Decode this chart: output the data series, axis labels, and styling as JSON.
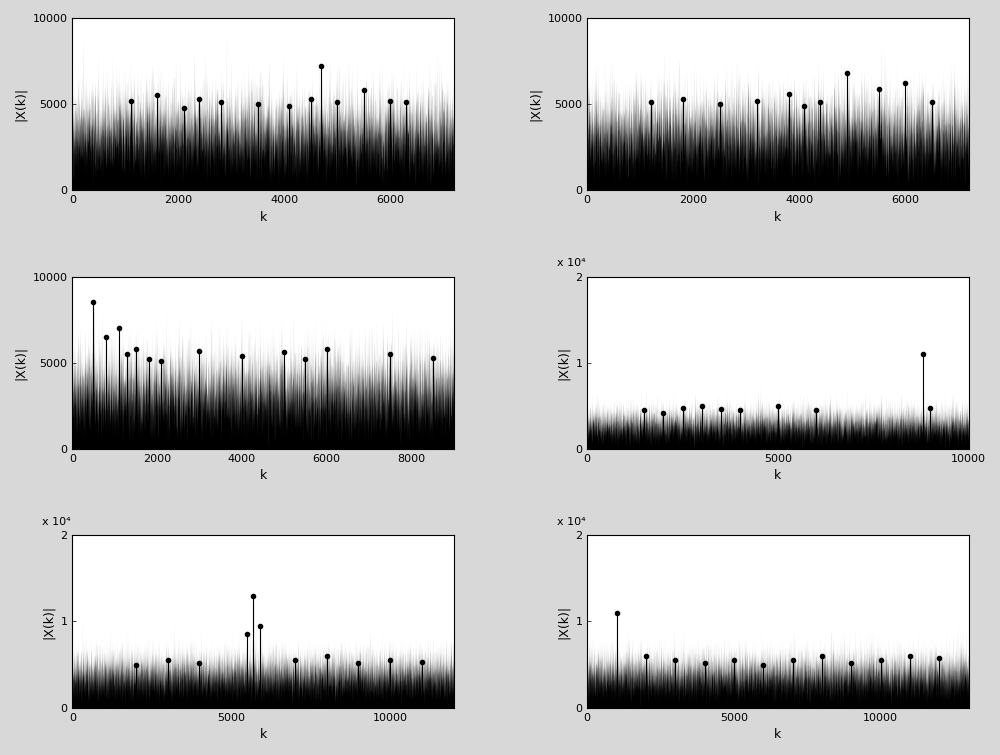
{
  "subplots": [
    {
      "row": 0,
      "col": 0,
      "n_points": 7200,
      "noise_level": 3500,
      "noise_base": 3500,
      "spike_positions": [
        1100,
        1600,
        2100,
        2400,
        2800,
        3500,
        4100,
        4500,
        4700,
        5000,
        5500,
        6000,
        6300
      ],
      "spike_heights": [
        5200,
        5500,
        4800,
        5300,
        5100,
        5000,
        4900,
        5300,
        7200,
        5100,
        5800,
        5200,
        5100
      ],
      "xlim": [
        0,
        7200
      ],
      "ylim": [
        0,
        10000
      ],
      "yticks": [
        0,
        5000,
        10000
      ],
      "xticks": [
        0,
        2000,
        4000,
        6000
      ],
      "ylabel": "|X(k)|",
      "xlabel": "k",
      "scale_label": null
    },
    {
      "row": 0,
      "col": 1,
      "n_points": 7200,
      "noise_level": 3500,
      "noise_base": 3500,
      "spike_positions": [
        1200,
        1800,
        2500,
        3200,
        3800,
        4100,
        4400,
        4900,
        5500,
        6000,
        6500
      ],
      "spike_heights": [
        5100,
        5300,
        5000,
        5200,
        5600,
        4900,
        5100,
        6800,
        5900,
        6200,
        5100
      ],
      "xlim": [
        0,
        7200
      ],
      "ylim": [
        0,
        10000
      ],
      "yticks": [
        0,
        5000,
        10000
      ],
      "xticks": [
        0,
        2000,
        4000,
        6000
      ],
      "ylabel": "|X(k)|",
      "xlabel": "k",
      "scale_label": null
    },
    {
      "row": 1,
      "col": 0,
      "n_points": 9000,
      "noise_level": 3500,
      "noise_base": 3500,
      "spike_positions": [
        500,
        800,
        1100,
        1300,
        1500,
        1800,
        2100,
        3000,
        4000,
        5000,
        5500,
        6000,
        7500,
        8500
      ],
      "spike_heights": [
        8500,
        6500,
        7000,
        5500,
        5800,
        5200,
        5100,
        5700,
        5400,
        5600,
        5200,
        5800,
        5500,
        5300
      ],
      "xlim": [
        0,
        9000
      ],
      "ylim": [
        0,
        10000
      ],
      "yticks": [
        0,
        5000,
        10000
      ],
      "xticks": [
        0,
        2000,
        4000,
        6000,
        8000
      ],
      "ylabel": "|X(k)|",
      "xlabel": "k",
      "scale_label": null
    },
    {
      "row": 1,
      "col": 1,
      "n_points": 10000,
      "noise_level": 3000,
      "noise_base": 3000,
      "spike_positions": [
        1500,
        2000,
        2500,
        3000,
        3500,
        4000,
        5000,
        6000,
        8800,
        9000
      ],
      "spike_heights": [
        4500,
        4200,
        4800,
        5000,
        4600,
        4500,
        5000,
        4500,
        11000,
        4800
      ],
      "xlim": [
        0,
        10000
      ],
      "ylim": [
        0,
        20000
      ],
      "yticks": [
        0,
        10000,
        20000
      ],
      "xticks": [
        0,
        5000,
        10000
      ],
      "ylabel": "|X(k)|",
      "xlabel": "k",
      "scale_label": "x 10⁴"
    },
    {
      "row": 2,
      "col": 0,
      "n_points": 12000,
      "noise_level": 4000,
      "noise_base": 4000,
      "spike_positions": [
        2000,
        3000,
        4000,
        5500,
        5700,
        5900,
        7000,
        8000,
        9000,
        10000,
        11000
      ],
      "spike_heights": [
        5000,
        5500,
        5200,
        8500,
        13000,
        9500,
        5500,
        6000,
        5200,
        5500,
        5300
      ],
      "xlim": [
        0,
        12000
      ],
      "ylim": [
        0,
        20000
      ],
      "yticks": [
        0,
        10000,
        20000
      ],
      "xticks": [
        0,
        5000,
        10000
      ],
      "ylabel": "|X(k)|",
      "xlabel": "k",
      "scale_label": "x 10⁴"
    },
    {
      "row": 2,
      "col": 1,
      "n_points": 13000,
      "noise_level": 4000,
      "noise_base": 4000,
      "spike_positions": [
        1000,
        2000,
        3000,
        4000,
        5000,
        6000,
        7000,
        8000,
        9000,
        10000,
        11000,
        12000
      ],
      "spike_heights": [
        11000,
        6000,
        5500,
        5200,
        5500,
        5000,
        5500,
        6000,
        5200,
        5500,
        6000,
        5800
      ],
      "xlim": [
        0,
        13000
      ],
      "ylim": [
        0,
        20000
      ],
      "yticks": [
        0,
        10000,
        20000
      ],
      "xticks": [
        0,
        5000,
        10000
      ],
      "ylabel": "|X(k)|",
      "xlabel": "k",
      "scale_label": "x 10⁴"
    }
  ],
  "fig_bg_color": "#d8d8d8",
  "plot_bg_color": "#ffffff",
  "line_color": "#000000",
  "seed": 42
}
